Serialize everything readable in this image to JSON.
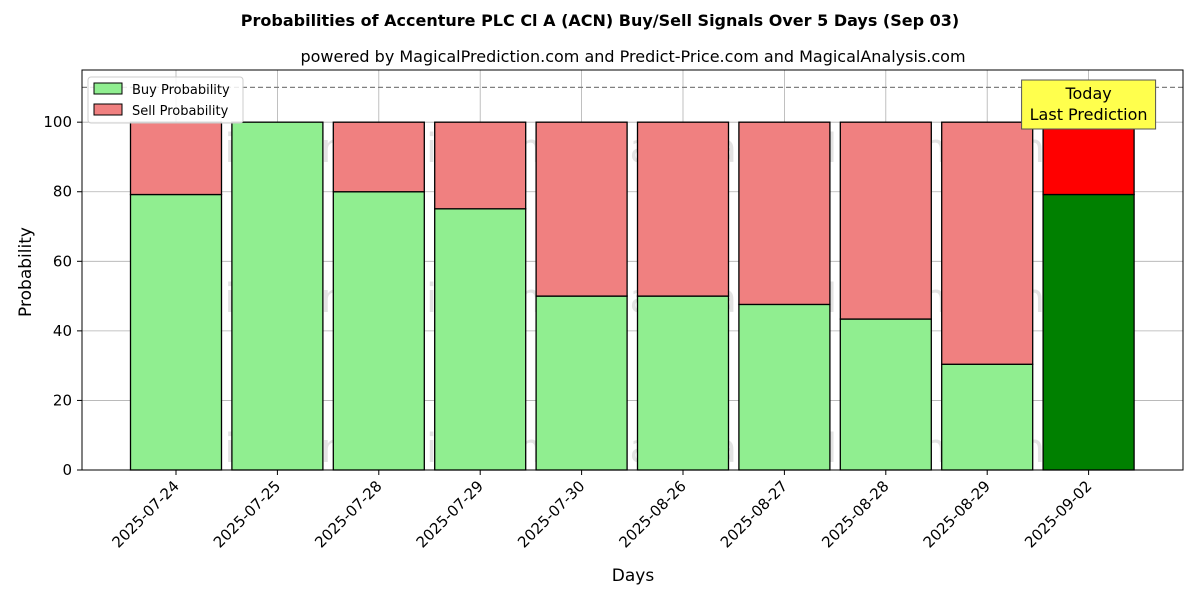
{
  "chart_data": {
    "type": "bar",
    "stacked": true,
    "title": "Probabilities of Accenture PLC Cl A (ACN) Buy/Sell Signals Over 5 Days (Sep 03)",
    "subtitle": "powered by MagicalPrediction.com and Predict-Price.com and MagicalAnalysis.com",
    "xlabel": "Days",
    "ylabel": "Probability",
    "ylim": [
      0,
      115
    ],
    "yticks": [
      0,
      20,
      40,
      60,
      80,
      100
    ],
    "grid": true,
    "legend_position": "top-left",
    "reference_line": 110,
    "categories": [
      "2025-07-24",
      "2025-07-25",
      "2025-07-28",
      "2025-07-29",
      "2025-07-30",
      "2025-08-26",
      "2025-08-27",
      "2025-08-28",
      "2025-08-29",
      "2025-09-02"
    ],
    "series": [
      {
        "name": "Buy Probability",
        "values": [
          79.2,
          100,
          80,
          75.1,
          50,
          50,
          47.6,
          43.4,
          30.4,
          79.2
        ]
      },
      {
        "name": "Sell Probability",
        "values": [
          20.8,
          0,
          20,
          24.9,
          50,
          50,
          52.4,
          56.6,
          69.6,
          20.8
        ]
      }
    ],
    "colors": {
      "buy": "#90ee90",
      "sell": "#f08080",
      "buy_highlight": "#008000",
      "sell_highlight": "#ff0000",
      "annotation_bg": "#ffff4d"
    },
    "annotation": {
      "lines": [
        "Today",
        "Last Prediction"
      ],
      "category_index": 9
    },
    "watermarks": [
      "MagicalAnalysis.com",
      "MagicalPrediction.com"
    ]
  }
}
